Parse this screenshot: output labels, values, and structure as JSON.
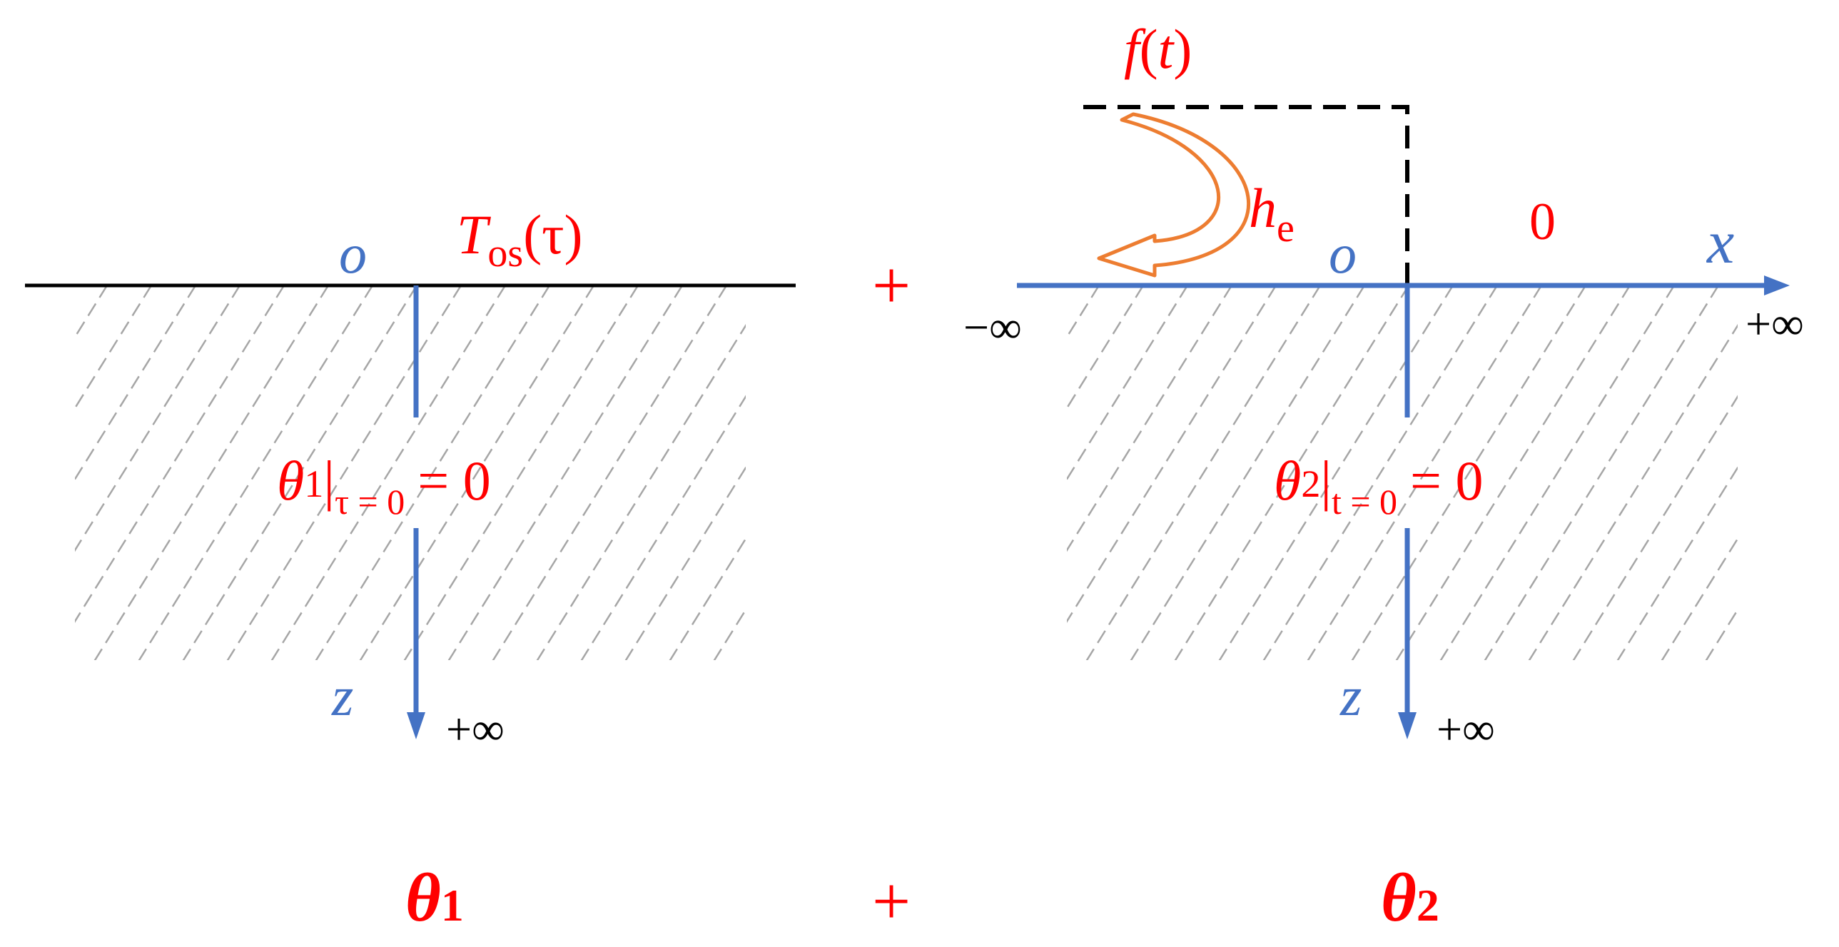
{
  "colors": {
    "label_red": "#ff0000",
    "axis_blue": "#4472c4",
    "surface_black": "#000000",
    "hatch_gray": "#a6a6a6",
    "arrow_orange": "#ed7d31"
  },
  "left": {
    "origin": "o",
    "boundary": {
      "T": "T",
      "sub": "os",
      "arg": "(τ)"
    },
    "initial": {
      "theta": "θ",
      "index": "1",
      "cond": "τ = 0",
      "rhs": "= 0"
    },
    "z_axis": "z",
    "z_infinity": "+∞",
    "bottom_theta": "θ",
    "bottom_index": "1"
  },
  "operators": {
    "plus_top": "+",
    "plus_bottom": "+"
  },
  "right": {
    "f_label": {
      "f": "f",
      "arg_open": "(",
      "t": "t",
      "arg_close": ")"
    },
    "he": {
      "h": "h",
      "sub": "e"
    },
    "zero": "0",
    "origin": "o",
    "x_axis": "x",
    "minus_infinity": "−∞",
    "plus_infinity": "+∞",
    "initial": {
      "theta": "θ",
      "index": "2",
      "cond": "t = 0",
      "rhs": "= 0"
    },
    "z_axis": "z",
    "z_infinity": "+∞",
    "bottom_theta": "θ",
    "bottom_index": "2"
  }
}
